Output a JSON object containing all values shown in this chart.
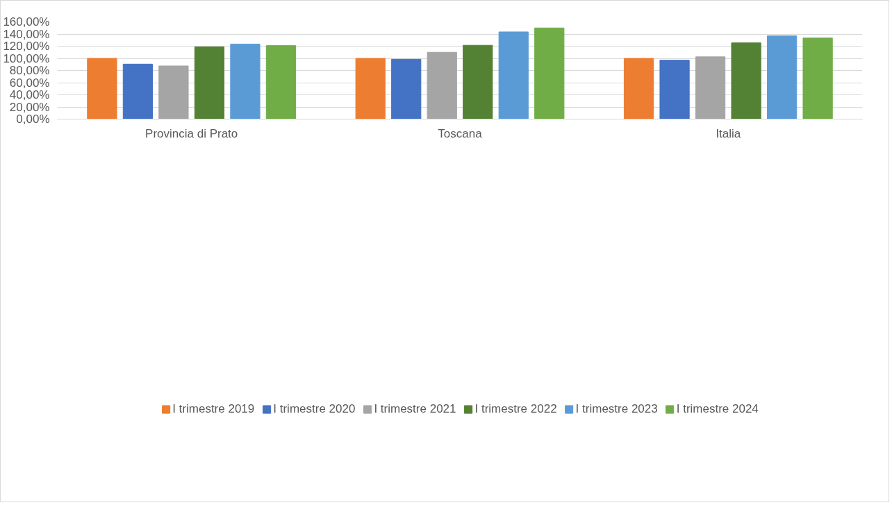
{
  "chart_data": {
    "type": "bar",
    "categories": [
      "Provincia di Prato",
      "Toscana",
      "Italia"
    ],
    "series": [
      {
        "name": "I trimestre 2019",
        "color": "#ed7d31",
        "values": [
          100,
          100,
          100
        ]
      },
      {
        "name": "I trimestre 2020",
        "color": "#4472c4",
        "values": [
          90.5,
          98.5,
          97
        ]
      },
      {
        "name": "I trimestre 2021",
        "color": "#a5a5a5",
        "values": [
          87.5,
          110,
          102.5
        ]
      },
      {
        "name": "I trimestre 2022",
        "color": "#548235",
        "values": [
          119,
          121.5,
          125.5
        ]
      },
      {
        "name": "I trimestre 2023",
        "color": "#5b9bd5",
        "values": [
          123.5,
          143.5,
          137
        ]
      },
      {
        "name": "I trimestre 2024",
        "color": "#70ad47",
        "values": [
          121,
          150,
          133.5
        ]
      }
    ],
    "ylim": [
      0,
      160
    ],
    "yticks": [
      {
        "value": 0,
        "label": "0,00%"
      },
      {
        "value": 20,
        "label": "20,00%"
      },
      {
        "value": 40,
        "label": "40,00%"
      },
      {
        "value": 60,
        "label": "60,00%"
      },
      {
        "value": 80,
        "label": "80,00%"
      },
      {
        "value": 100,
        "label": "100,00%"
      },
      {
        "value": 120,
        "label": "120,00%"
      },
      {
        "value": 140,
        "label": "140,00%"
      },
      {
        "value": 160,
        "label": "160,00%"
      }
    ],
    "grid": "y",
    "legend": "bottom"
  }
}
